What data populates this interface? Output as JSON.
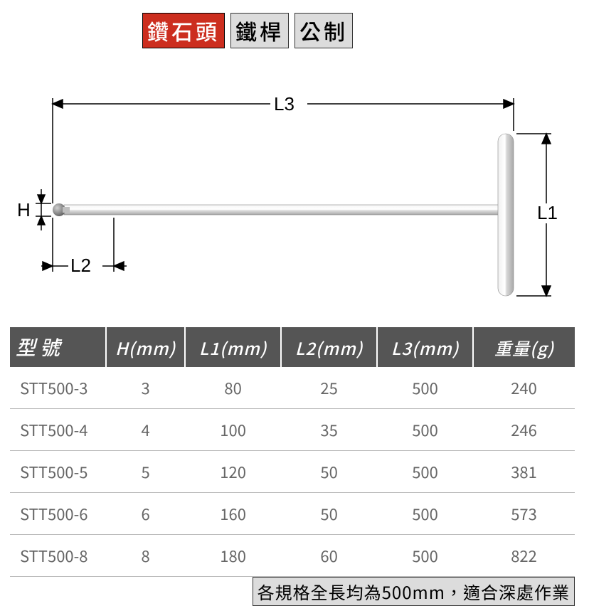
{
  "tags": {
    "items": [
      "鑽石頭",
      "鐵桿",
      "公制"
    ],
    "active_index": 0,
    "active_bg": "#cc2e1f",
    "inactive_bg": "#dcdcdc"
  },
  "diagram": {
    "labels": {
      "H": "H",
      "L1": "L1",
      "L2": "L2",
      "L3": "L3"
    },
    "colors": {
      "stroke": "#000000",
      "shaft_light": "#f2f2f2",
      "shaft_mid": "#d8d8d8",
      "shaft_dark": "#a8a8a8",
      "handle_light": "#e8e8e8",
      "handle_dark": "#b0b0b0",
      "tip": "#808080"
    }
  },
  "table": {
    "columns": [
      "型號",
      "H(mm)",
      "L1(mm)",
      "L2(mm)",
      "L3(mm)",
      "重量(g)"
    ],
    "col_widths_pct": [
      17,
      14,
      17,
      17,
      17,
      18
    ],
    "header_bg": "#555555",
    "header_fg": "#ffffff",
    "cell_fg": "#666666",
    "row_border": "#bbbbbb",
    "rows": [
      [
        "STT500-3",
        "3",
        "80",
        "25",
        "500",
        "240"
      ],
      [
        "STT500-4",
        "4",
        "100",
        "35",
        "500",
        "246"
      ],
      [
        "STT500-5",
        "5",
        "120",
        "50",
        "500",
        "381"
      ],
      [
        "STT500-6",
        "6",
        "160",
        "50",
        "500",
        "573"
      ],
      [
        "STT500-8",
        "8",
        "180",
        "60",
        "500",
        "822"
      ]
    ]
  },
  "footnote": "各規格全長均為500mm，適合深處作業"
}
